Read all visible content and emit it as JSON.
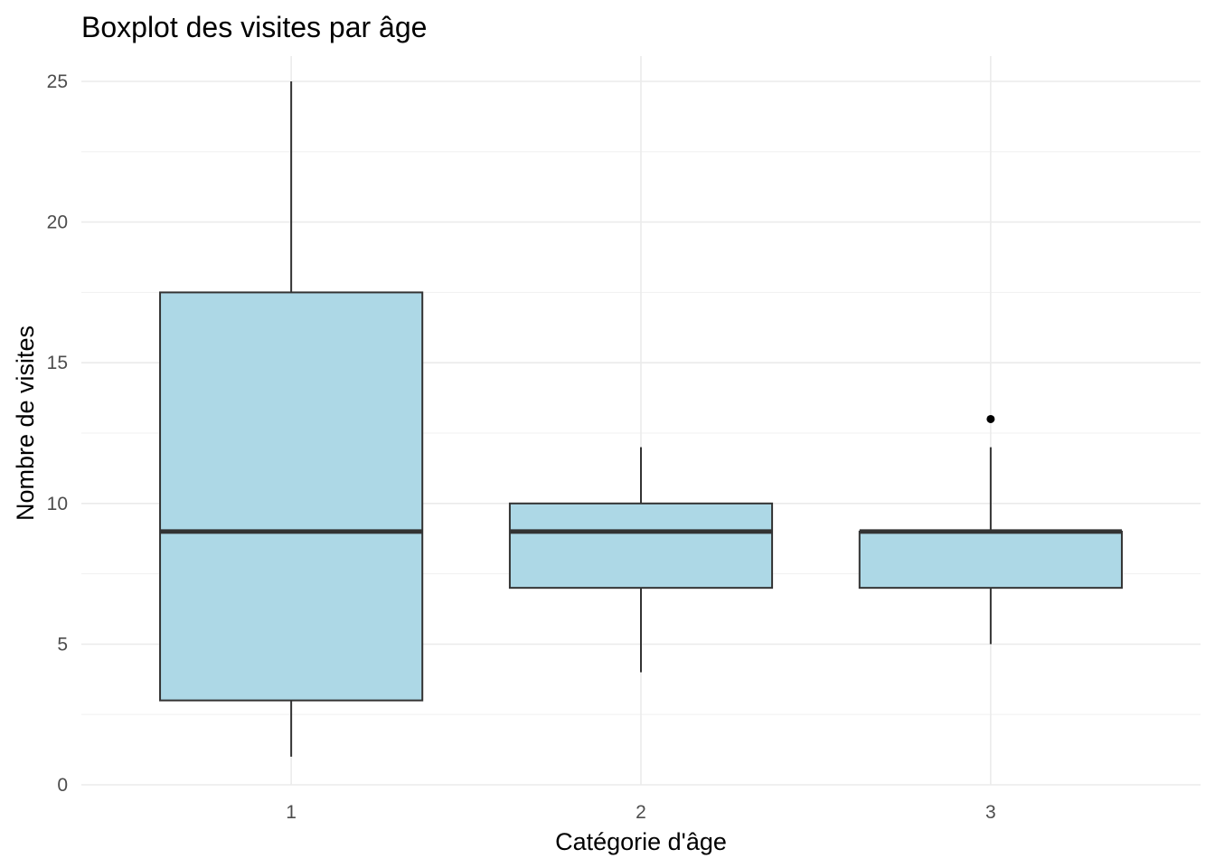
{
  "chart_data": {
    "type": "boxplot",
    "title": "Boxplot des visites par âge",
    "xlabel": "Catégorie d'âge",
    "ylabel": "Nombre de visites",
    "categories": [
      "1",
      "2",
      "3"
    ],
    "boxes": [
      {
        "category": "1",
        "whisker_low": 1,
        "q1": 3,
        "median": 9,
        "q3": 17.5,
        "whisker_high": 25,
        "outliers": []
      },
      {
        "category": "2",
        "whisker_low": 4,
        "q1": 7,
        "median": 9,
        "q3": 10,
        "whisker_high": 12,
        "outliers": []
      },
      {
        "category": "3",
        "whisker_low": 5,
        "q1": 7,
        "median": 9,
        "q3": 9,
        "whisker_high": 12,
        "outliers": [
          13
        ]
      }
    ],
    "ylim": [
      0,
      25.9
    ],
    "yticks": [
      0,
      5,
      10,
      15,
      20,
      25
    ],
    "yminor_ticks": [
      2.5,
      7.5,
      12.5,
      17.5,
      22.5
    ],
    "grid": true,
    "legend": "none",
    "colors": {
      "box_fill": "#add8e6",
      "box_stroke": "#333333",
      "outlier": "#000000",
      "grid": "#ebebeb"
    }
  }
}
